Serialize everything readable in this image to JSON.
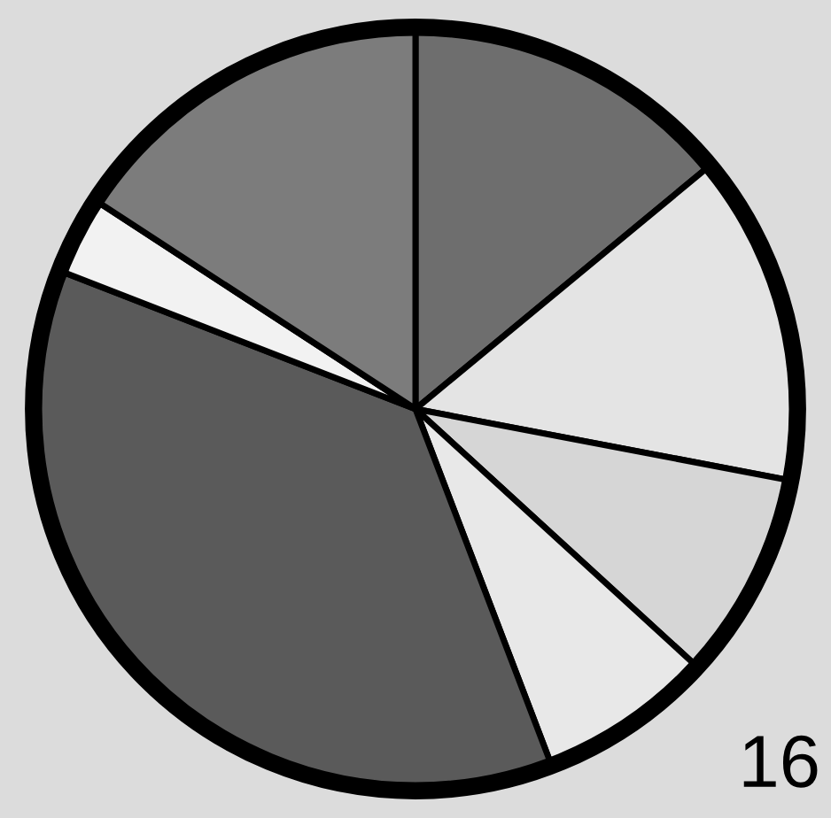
{
  "chart_data": {
    "type": "pie",
    "categories": [
      null,
      null,
      null,
      null,
      null,
      null,
      null
    ],
    "values": [
      14.0,
      14.0,
      8.8,
      7.4,
      36.7,
      3.3,
      15.8
    ],
    "colors": [
      "#6e6e6e",
      "#e4e4e4",
      "#d6d6d6",
      "#e8e8e8",
      "#5a5a5a",
      "#f2f2f2",
      "#7c7c7c"
    ],
    "annotations": [
      "16"
    ]
  }
}
